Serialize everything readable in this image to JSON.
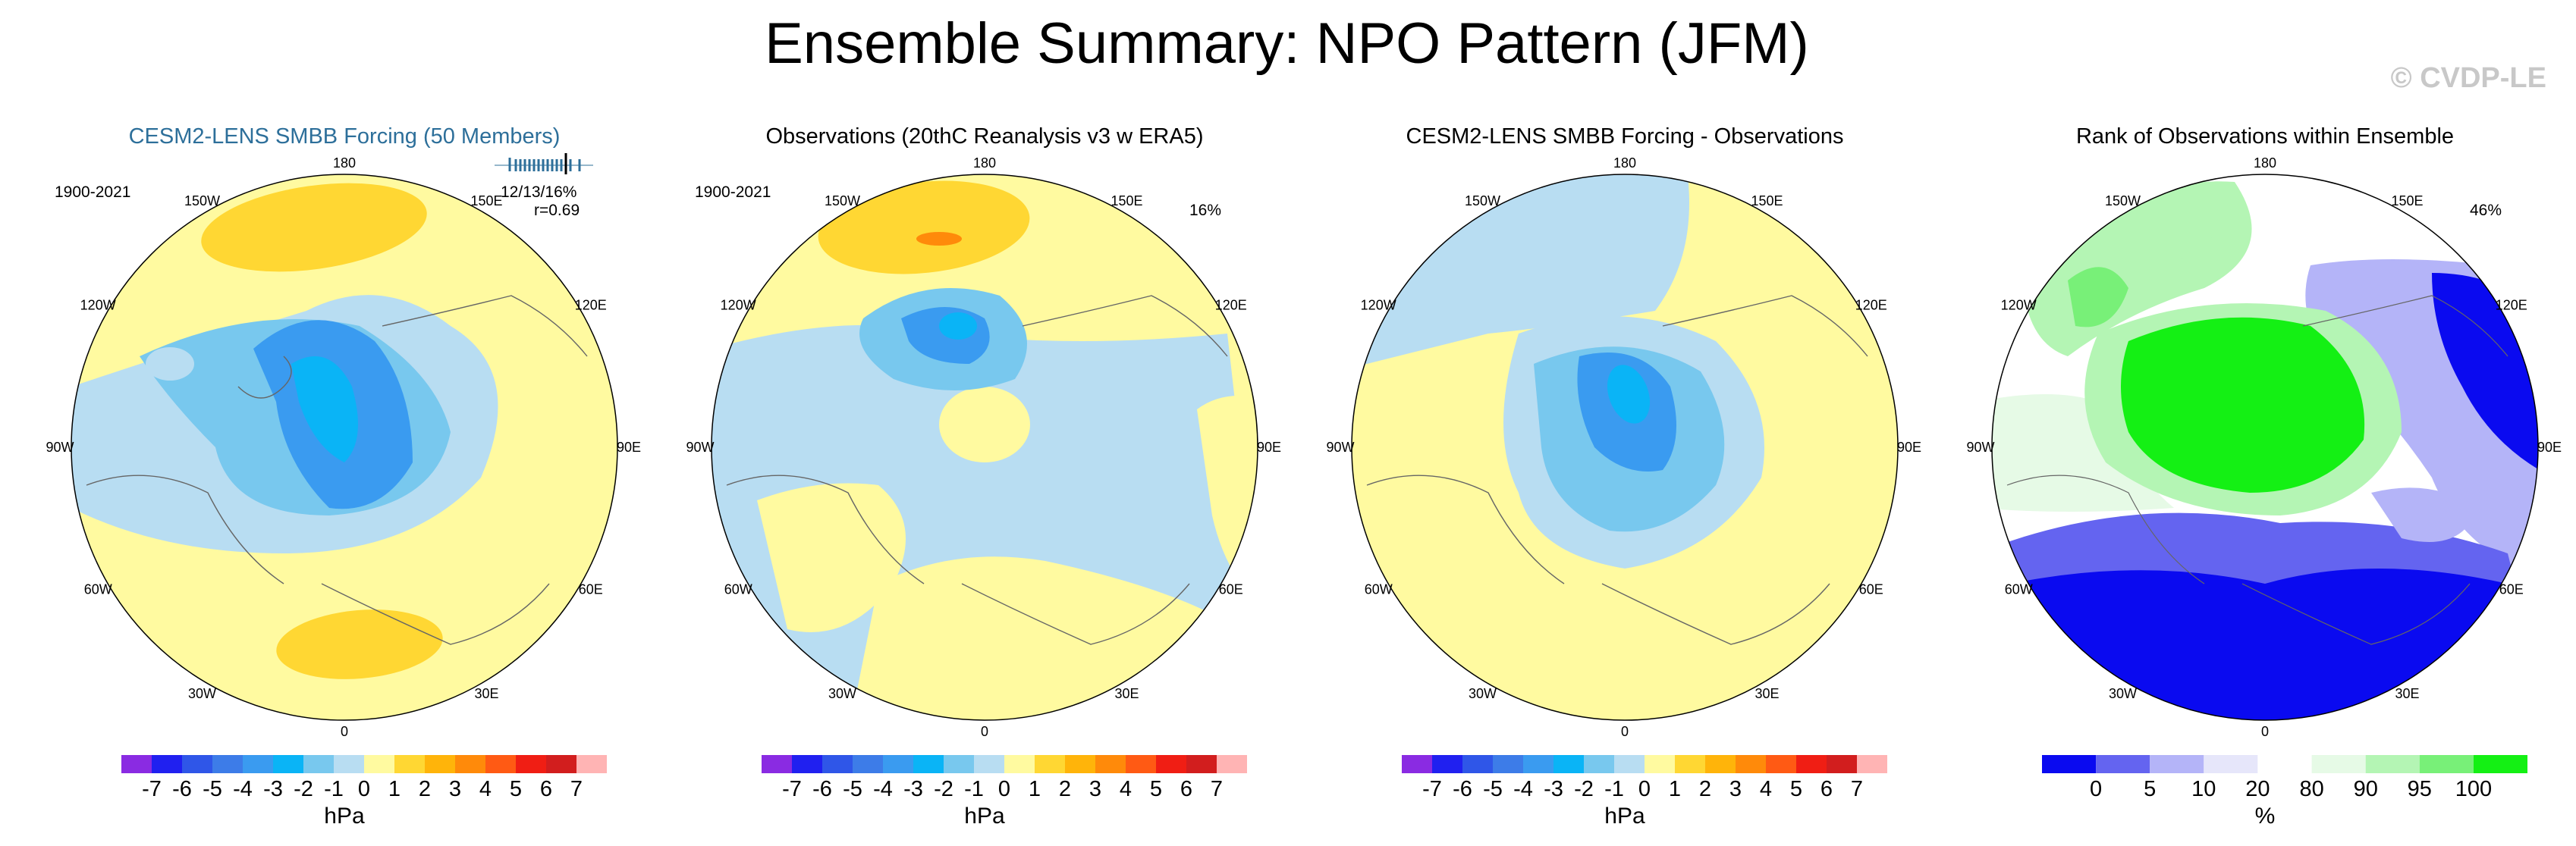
{
  "title": "Ensemble Summary: NPO Pattern (JFM)",
  "watermark": "© CVDP-LE",
  "lon_labels": [
    "180",
    "150E",
    "120E",
    "90E",
    "60E",
    "30E",
    "0",
    "30W",
    "60W",
    "90W",
    "120W",
    "150W"
  ],
  "panels": [
    {
      "title": "CESM2-LENS SMBB Forcing (50 Members)",
      "years": "1900-2021",
      "stat_line1": "12/13/16%",
      "stat_line2": "r=0.69",
      "unit": "hPa",
      "type": "hpa"
    },
    {
      "title": "Observations (20thC Reanalysis v3 w ERA5)",
      "years": "1900-2021",
      "stat_line1": "16%",
      "unit": "hPa",
      "type": "hpa"
    },
    {
      "title": "CESM2-LENS SMBB Forcing - Observations",
      "unit": "hPa",
      "type": "hpa"
    },
    {
      "title": "Rank of Observations within Ensemble",
      "stat_line1": "46%",
      "unit": "%",
      "type": "rank"
    }
  ],
  "colorbar_hpa": {
    "colors": [
      "#8a2be2",
      "#2020f0",
      "#2f56e8",
      "#3d7ce8",
      "#3a9bf0",
      "#0ab4f6",
      "#78c8ee",
      "#b8ddf2",
      "#fffaa0",
      "#ffd733",
      "#ffb40a",
      "#ff8a0a",
      "#ff5a14",
      "#f01e14",
      "#d21e1e",
      "#ffb4b4"
    ],
    "labels": [
      "-7",
      "-6",
      "-5",
      "-4",
      "-3",
      "-2",
      "-1",
      "0",
      "1",
      "2",
      "3",
      "4",
      "5",
      "6",
      "7"
    ]
  },
  "colorbar_rank": {
    "colors": [
      "#0a0af0",
      "#6464f0",
      "#b4b4f8",
      "#e6e6fa",
      "#ffffff",
      "#e6fae6",
      "#b4f5b4",
      "#78f078",
      "#14f014"
    ],
    "labels": [
      "0",
      "5",
      "10",
      "20",
      "80",
      "90",
      "95",
      "100"
    ]
  }
}
